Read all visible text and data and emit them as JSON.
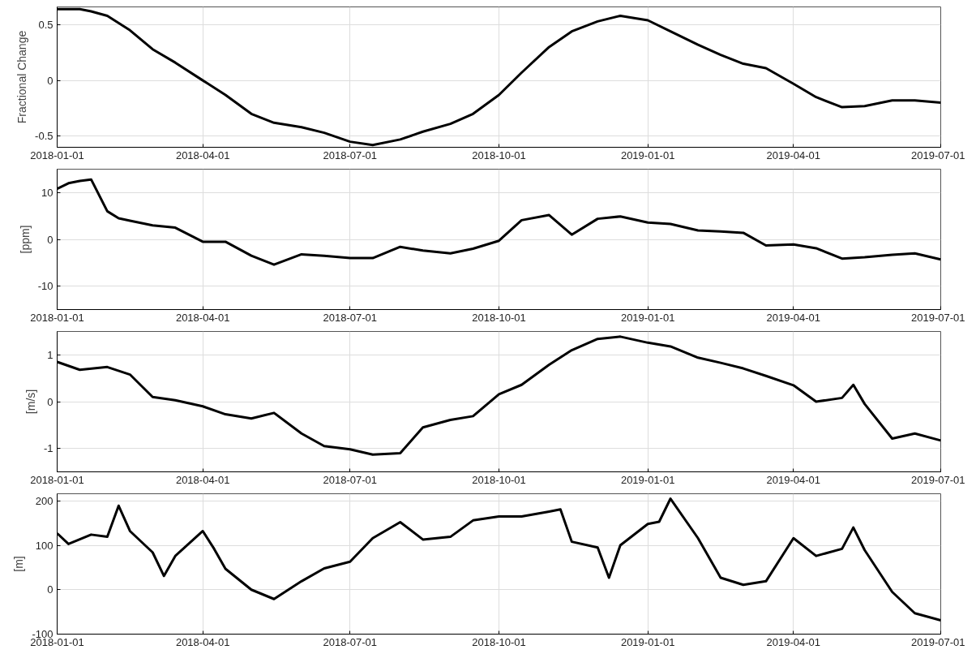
{
  "chart_data": [
    {
      "type": "line",
      "ylabel": "Fractional Change",
      "xlim": [
        "2018-01-01",
        "2019-07-01"
      ],
      "xticks": [
        "2018-01-01",
        "2018-04-01",
        "2018-07-01",
        "2018-10-01",
        "2019-01-01",
        "2019-04-01",
        "2019-07-01"
      ],
      "ylim": [
        -0.6,
        0.66
      ],
      "yticks": [
        -0.5,
        0,
        0.5
      ],
      "grid": true,
      "marker": "none",
      "line_style": "solid",
      "series": [
        {
          "color": "#000000",
          "x": [
            "2018-01-01",
            "2018-01-08",
            "2018-01-15",
            "2018-01-22",
            "2018-02-01",
            "2018-02-15",
            "2018-03-01",
            "2018-03-15",
            "2018-04-01",
            "2018-04-15",
            "2018-05-01",
            "2018-05-15",
            "2018-06-01",
            "2018-06-15",
            "2018-07-01",
            "2018-07-15",
            "2018-08-01",
            "2018-08-15",
            "2018-09-01",
            "2018-09-15",
            "2018-10-01",
            "2018-10-15",
            "2018-11-01",
            "2018-11-15",
            "2018-12-01",
            "2018-12-15",
            "2019-01-01",
            "2019-01-15",
            "2019-02-01",
            "2019-02-15",
            "2019-03-01",
            "2019-03-15",
            "2019-04-01",
            "2019-04-15",
            "2019-05-01",
            "2019-05-15",
            "2019-06-01",
            "2019-06-15",
            "2019-07-01"
          ],
          "values": [
            0.64,
            0.64,
            0.64,
            0.62,
            0.58,
            0.45,
            0.28,
            0.16,
            0.0,
            -0.13,
            -0.3,
            -0.38,
            -0.42,
            -0.47,
            -0.55,
            -0.58,
            -0.53,
            -0.46,
            -0.39,
            -0.3,
            -0.13,
            0.07,
            0.3,
            0.44,
            0.53,
            0.58,
            0.54,
            0.44,
            0.32,
            0.23,
            0.15,
            0.11,
            -0.03,
            -0.15,
            -0.24,
            -0.23,
            -0.18,
            -0.18,
            -0.2
          ]
        }
      ]
    },
    {
      "type": "line",
      "ylabel": "[ppm]",
      "xlim": [
        "2018-01-01",
        "2019-07-01"
      ],
      "xticks": [
        "2018-01-01",
        "2018-04-01",
        "2018-07-01",
        "2018-10-01",
        "2019-01-01",
        "2019-04-01",
        "2019-07-01"
      ],
      "ylim": [
        -15,
        15
      ],
      "yticks": [
        -10,
        0,
        10
      ],
      "grid": true,
      "marker": "none",
      "line_style": "solid",
      "series": [
        {
          "color": "#000000",
          "x": [
            "2018-01-01",
            "2018-01-08",
            "2018-01-15",
            "2018-01-22",
            "2018-02-01",
            "2018-02-08",
            "2018-02-15",
            "2018-03-01",
            "2018-03-15",
            "2018-04-01",
            "2018-04-15",
            "2018-05-01",
            "2018-05-15",
            "2018-06-01",
            "2018-06-15",
            "2018-07-01",
            "2018-07-15",
            "2018-08-01",
            "2018-08-15",
            "2018-09-01",
            "2018-09-15",
            "2018-10-01",
            "2018-10-15",
            "2018-11-01",
            "2018-11-15",
            "2018-12-01",
            "2018-12-15",
            "2019-01-01",
            "2019-01-15",
            "2019-02-01",
            "2019-02-15",
            "2019-03-01",
            "2019-03-15",
            "2019-04-01",
            "2019-04-15",
            "2019-05-01",
            "2019-05-15",
            "2019-06-01",
            "2019-06-15",
            "2019-07-01"
          ],
          "values": [
            10.8,
            12,
            12.5,
            12.8,
            6,
            4.5,
            4,
            3,
            2.5,
            -0.5,
            -0.5,
            -3.5,
            -5.4,
            -3.2,
            -3.5,
            -4,
            -4,
            -1.6,
            -2.4,
            -3,
            -2,
            -0.3,
            4.1,
            5.2,
            1,
            4.4,
            4.9,
            3.6,
            3.3,
            1.9,
            1.7,
            1.4,
            -1.3,
            -1.1,
            -1.9,
            -4.1,
            -3.8,
            -3.3,
            -3,
            -4.3
          ]
        }
      ]
    },
    {
      "type": "line",
      "ylabel": "[m/s]",
      "xlim": [
        "2018-01-01",
        "2019-07-01"
      ],
      "xticks": [
        "2018-01-01",
        "2018-04-01",
        "2018-07-01",
        "2018-10-01",
        "2019-01-01",
        "2019-04-01",
        "2019-07-01"
      ],
      "ylim": [
        -1.5,
        1.5
      ],
      "yticks": [
        -1,
        0,
        1
      ],
      "grid": true,
      "marker": "none",
      "line_style": "solid",
      "series": [
        {
          "color": "#000000",
          "x": [
            "2018-01-01",
            "2018-01-15",
            "2018-02-01",
            "2018-02-15",
            "2018-03-01",
            "2018-03-15",
            "2018-04-01",
            "2018-04-15",
            "2018-05-01",
            "2018-05-15",
            "2018-06-01",
            "2018-06-15",
            "2018-07-01",
            "2018-07-15",
            "2018-08-01",
            "2018-08-15",
            "2018-09-01",
            "2018-09-15",
            "2018-10-01",
            "2018-10-15",
            "2018-11-01",
            "2018-11-15",
            "2018-12-01",
            "2018-12-15",
            "2019-01-01",
            "2019-01-15",
            "2019-02-01",
            "2019-02-15",
            "2019-03-01",
            "2019-03-15",
            "2019-04-01",
            "2019-04-15",
            "2019-05-01",
            "2019-05-08",
            "2019-05-15",
            "2019-06-01",
            "2019-06-15",
            "2019-07-01"
          ],
          "values": [
            0.85,
            0.68,
            0.74,
            0.58,
            0.1,
            0.03,
            -0.1,
            -0.27,
            -0.36,
            -0.24,
            -0.68,
            -0.95,
            -1.02,
            -1.13,
            -1.1,
            -0.55,
            -0.39,
            -0.31,
            0.16,
            0.36,
            0.79,
            1.1,
            1.34,
            1.39,
            1.26,
            1.18,
            0.94,
            0.83,
            0.71,
            0.55,
            0.35,
            0,
            0.08,
            0.36,
            -0.05,
            -0.79,
            -0.68,
            -0.83
          ]
        }
      ]
    },
    {
      "type": "line",
      "ylabel": "[m]",
      "xlim": [
        "2018-01-01",
        "2019-07-01"
      ],
      "xticks": [
        "2018-01-01",
        "2018-04-01",
        "2018-07-01",
        "2018-10-01",
        "2019-01-01",
        "2019-04-01",
        "2019-07-01"
      ],
      "ylim": [
        -100,
        216
      ],
      "yticks": [
        -100,
        0,
        100,
        200
      ],
      "grid": true,
      "marker": "none",
      "line_style": "solid",
      "series": [
        {
          "color": "#000000",
          "x": [
            "2018-01-01",
            "2018-01-08",
            "2018-01-22",
            "2018-02-01",
            "2018-02-08",
            "2018-02-15",
            "2018-03-01",
            "2018-03-08",
            "2018-03-15",
            "2018-04-01",
            "2018-04-08",
            "2018-04-15",
            "2018-05-01",
            "2018-05-15",
            "2018-06-01",
            "2018-06-15",
            "2018-07-01",
            "2018-07-15",
            "2018-08-01",
            "2018-08-15",
            "2018-09-01",
            "2018-09-15",
            "2018-10-01",
            "2018-10-15",
            "2018-11-01",
            "2018-11-08",
            "2018-11-15",
            "2018-12-01",
            "2018-12-08",
            "2018-12-15",
            "2019-01-01",
            "2019-01-08",
            "2019-01-15",
            "2019-02-01",
            "2019-02-15",
            "2019-03-01",
            "2019-03-15",
            "2019-04-01",
            "2019-04-15",
            "2019-05-01",
            "2019-05-08",
            "2019-05-15",
            "2019-06-01",
            "2019-06-15",
            "2019-07-01"
          ],
          "values": [
            127,
            103,
            124,
            119,
            189,
            132,
            84,
            31,
            76,
            132,
            92,
            47,
            0,
            -21,
            19,
            48,
            63,
            116,
            152,
            113,
            119,
            156,
            165,
            165,
            176,
            181,
            108,
            95,
            27,
            100,
            148,
            153,
            205,
            116,
            27,
            11,
            19,
            116,
            76,
            92,
            140,
            89,
            -5,
            -53,
            -69
          ]
        }
      ]
    }
  ]
}
